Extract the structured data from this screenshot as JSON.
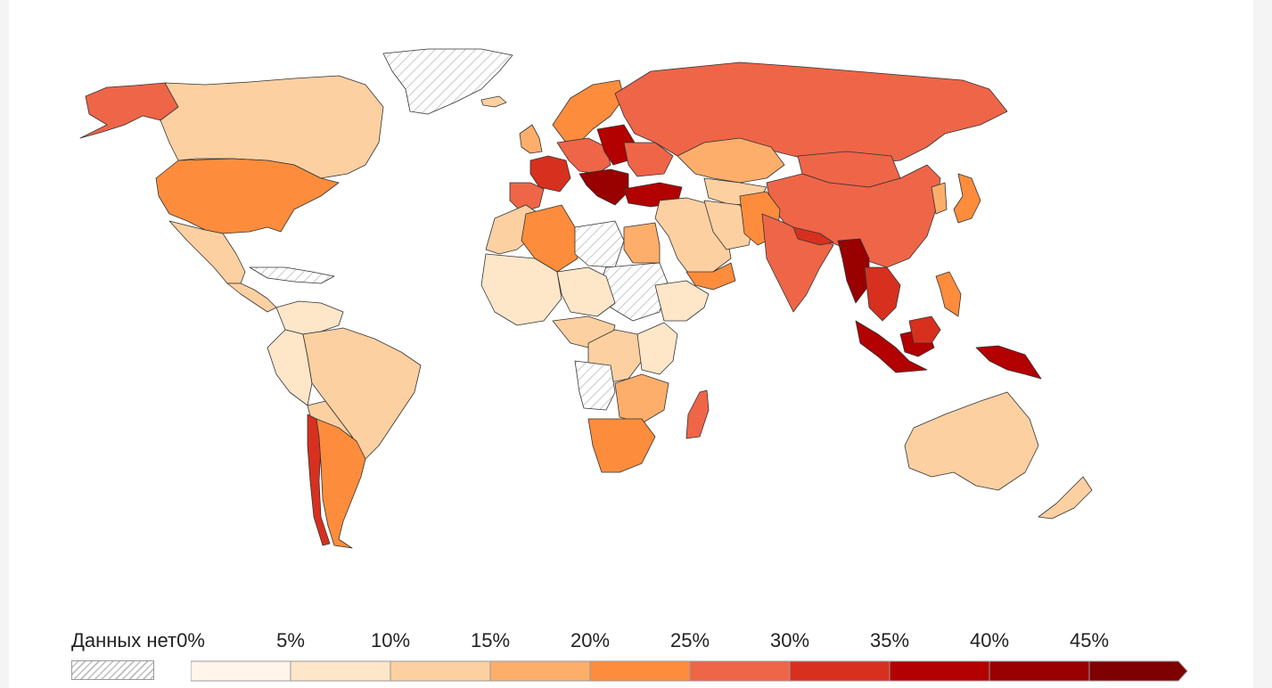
{
  "legend": {
    "no_data_label": "Данных нет",
    "tick_labels": [
      "0%",
      "5%",
      "10%",
      "15%",
      "20%",
      "25%",
      "30%",
      "35%",
      "40%",
      "45%"
    ],
    "bin_colors": [
      "#fff5eb",
      "#fee6c9",
      "#fdd0a2",
      "#fdae6b",
      "#fd8d3c",
      "#ef6548",
      "#d7301f",
      "#b30000",
      "#990000",
      "#7f0000"
    ]
  },
  "map_colors": {
    "no_data_hatch": "#c8c8c8",
    "border": "#333333"
  },
  "regions": [
    {
      "name": "Alaska",
      "bin": 5
    },
    {
      "name": "Canada",
      "bin": 2
    },
    {
      "name": "Greenland",
      "bin": -1
    },
    {
      "name": "USA",
      "bin": 4
    },
    {
      "name": "Mexico",
      "bin": 2
    },
    {
      "name": "Central America",
      "bin": 2
    },
    {
      "name": "Caribbean",
      "bin": -1
    },
    {
      "name": "Colombia/Venezuela",
      "bin": 1
    },
    {
      "name": "Peru/Ecuador",
      "bin": 1
    },
    {
      "name": "Brazil",
      "bin": 2
    },
    {
      "name": "Bolivia/Paraguay",
      "bin": 2
    },
    {
      "name": "Chile",
      "bin": 6
    },
    {
      "name": "Argentina",
      "bin": 4
    },
    {
      "name": "Iceland",
      "bin": 2
    },
    {
      "name": "UK/Ireland",
      "bin": 3
    },
    {
      "name": "Scandinavia",
      "bin": 4
    },
    {
      "name": "France",
      "bin": 6
    },
    {
      "name": "Iberia",
      "bin": 5
    },
    {
      "name": "Central Europe",
      "bin": 5
    },
    {
      "name": "Poland/Belarus",
      "bin": 7
    },
    {
      "name": "Balkans",
      "bin": 8
    },
    {
      "name": "Ukraine",
      "bin": 5
    },
    {
      "name": "Turkey",
      "bin": 7
    },
    {
      "name": "Russia",
      "bin": 5
    },
    {
      "name": "Kazakhstan",
      "bin": 3
    },
    {
      "name": "Central Asia",
      "bin": 2
    },
    {
      "name": "Mongolia",
      "bin": 5
    },
    {
      "name": "China",
      "bin": 5
    },
    {
      "name": "Korea",
      "bin": 3
    },
    {
      "name": "Japan",
      "bin": 4
    },
    {
      "name": "Middle East",
      "bin": 2
    },
    {
      "name": "Iran",
      "bin": 2
    },
    {
      "name": "Afghanistan/Pakistan",
      "bin": 4
    },
    {
      "name": "India",
      "bin": 5
    },
    {
      "name": "Nepal",
      "bin": 6
    },
    {
      "name": "Myanmar",
      "bin": 8
    },
    {
      "name": "Thailand/Indochina",
      "bin": 6
    },
    {
      "name": "Indonesia",
      "bin": 7
    },
    {
      "name": "New Guinea",
      "bin": 7
    },
    {
      "name": "Philippines",
      "bin": 4
    },
    {
      "name": "Malaysia/Borneo",
      "bin": 6
    },
    {
      "name": "Australia",
      "bin": 2
    },
    {
      "name": "New Zealand",
      "bin": 2
    },
    {
      "name": "Morocco/West Sahara",
      "bin": 2
    },
    {
      "name": "Algeria",
      "bin": 4
    },
    {
      "name": "Libya",
      "bin": -1
    },
    {
      "name": "Egypt",
      "bin": 3
    },
    {
      "name": "Sudan",
      "bin": -1
    },
    {
      "name": "West Africa",
      "bin": 1
    },
    {
      "name": "Niger/Chad",
      "bin": 1
    },
    {
      "name": "Ethiopia/Horn",
      "bin": 1
    },
    {
      "name": "Central Africa",
      "bin": 2
    },
    {
      "name": "DRC",
      "bin": 2
    },
    {
      "name": "Angola",
      "bin": -1
    },
    {
      "name": "East Africa",
      "bin": 1
    },
    {
      "name": "Southern Africa",
      "bin": 3
    },
    {
      "name": "South Africa",
      "bin": 4
    },
    {
      "name": "Madagascar",
      "bin": 5
    },
    {
      "name": "Yemen/Oman",
      "bin": 4
    }
  ]
}
